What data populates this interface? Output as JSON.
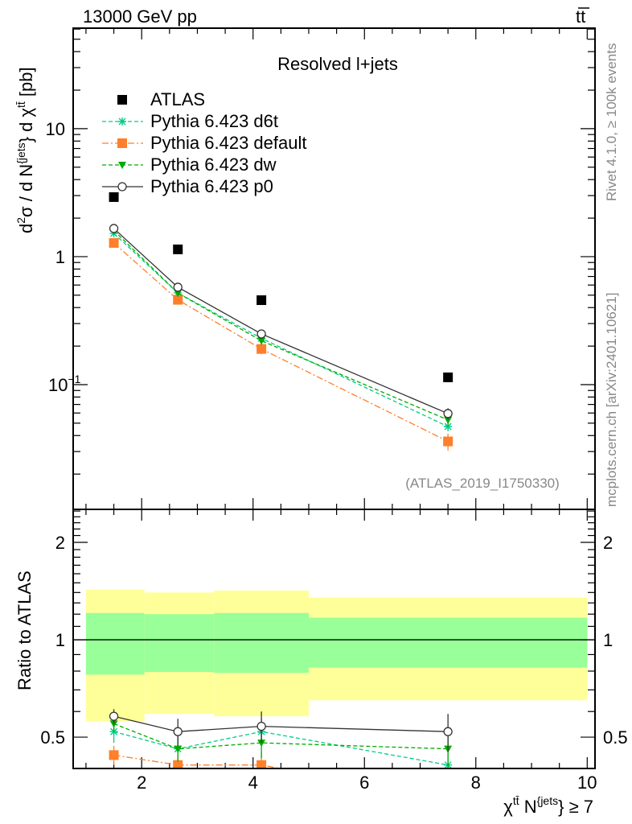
{
  "header": {
    "energy": "13000 GeV pp",
    "process": "tt",
    "process_bar": "̄"
  },
  "side_texts": {
    "rivet": "Rivet 4.1.0, ≥ 100k events",
    "mcplots": "mcplots.cern.ch [arXiv:2401.10621]"
  },
  "watermark": "(ATLAS_2019_I1750330)",
  "chart_data": [
    {
      "type": "line",
      "title": "Resolved l+jets",
      "ylabel": {
        "a": "d",
        "a_sup": "2",
        "b": "σ  /  d N",
        "b_sup": "{jets",
        "c": "} d χ",
        "c_sup": "tt̄",
        "d": " [pb]"
      },
      "yscale": "log",
      "ylim": [
        0.0106,
        61
      ],
      "xlim": [
        0.77,
        10.14
      ],
      "yticks": [
        {
          "v": 10,
          "label": "10"
        },
        {
          "v": 1,
          "label": "1"
        },
        {
          "v": 0.1,
          "label": "10",
          "sup": "−1"
        }
      ],
      "legend_placement": "top-left",
      "x": [
        1.5,
        2.65,
        4.15,
        7.5
      ],
      "series": [
        {
          "name": "ATLAS",
          "color": "#000000",
          "marker": "square",
          "values": [
            2.92,
            1.14,
            0.457,
            0.114
          ]
        },
        {
          "name": "Pythia 6.423 d6t",
          "color": "#00cc88",
          "marker": "asterisk",
          "dash": "5,3",
          "values": [
            1.52,
            0.52,
            0.23,
            0.047
          ],
          "rel_err": [
            0.05,
            0.06,
            0.07,
            0.08
          ]
        },
        {
          "name": "Pythia 6.423 default",
          "color": "#ff7f2a",
          "marker": "square",
          "dash": "8,3,2,3",
          "values": [
            1.28,
            0.46,
            0.19,
            0.036
          ],
          "rel_err": [
            0.05,
            0.07,
            0.09,
            0.15
          ]
        },
        {
          "name": "Pythia 6.423 dw",
          "color": "#00aa00",
          "marker": "triangle-down",
          "dash": "5,3",
          "values": [
            1.6,
            0.52,
            0.22,
            0.053
          ],
          "rel_err": [
            0.05,
            0.06,
            0.07,
            0.1
          ]
        },
        {
          "name": "Pythia 6.423 p0",
          "color": "#333333",
          "marker": "open-circle",
          "values": [
            1.66,
            0.577,
            0.249,
            0.0594
          ],
          "rel_err": [
            0.05,
            0.06,
            0.08,
            0.1
          ]
        }
      ]
    },
    {
      "type": "line",
      "ylabel": "Ratio to ATLAS",
      "xlabel": {
        "a": "χ",
        "a_sup": "tt̄",
        "b": " N",
        "b_sup": "{jets",
        "c": "} ≥ 7"
      },
      "yscale": "log",
      "ylim": [
        0.4,
        2.53
      ],
      "xlim": [
        0.77,
        10.14
      ],
      "xticks": [
        2,
        4,
        6,
        8,
        10
      ],
      "yticks": [
        "0.5",
        "1",
        "2"
      ],
      "bins": [
        [
          1.0,
          2.05
        ],
        [
          2.05,
          3.3
        ],
        [
          3.3,
          5.0
        ],
        [
          5.0,
          10.0
        ]
      ],
      "band_total": {
        "color": "#ffff99",
        "lo": [
          0.56,
          0.59,
          0.58,
          0.65
        ],
        "hi": [
          1.43,
          1.4,
          1.42,
          1.35
        ]
      },
      "band_stat": {
        "color": "#99ff99",
        "lo": [
          0.78,
          0.795,
          0.79,
          0.82
        ],
        "hi": [
          1.21,
          1.2,
          1.21,
          1.17
        ]
      },
      "x": [
        1.5,
        2.65,
        4.15,
        7.5
      ],
      "series": [
        {
          "name": "Pythia 6.423 d6t",
          "color": "#00cc88",
          "marker": "asterisk",
          "dash": "5,3",
          "values": [
            0.52,
            0.46,
            0.52,
            0.41
          ],
          "err": [
            0.04,
            0.04,
            0.05,
            0.05
          ]
        },
        {
          "name": "Pythia 6.423 default",
          "color": "#ff7f2a",
          "marker": "square",
          "dash": "8,3,2,3",
          "values": [
            0.44,
            0.41,
            0.41,
            0.32
          ],
          "err": [
            0.03,
            0.03,
            0.04,
            0.05
          ]
        },
        {
          "name": "Pythia 6.423 dw",
          "color": "#00aa00",
          "marker": "triangle-down",
          "dash": "5,3",
          "values": [
            0.55,
            0.46,
            0.48,
            0.46
          ],
          "err": [
            0.03,
            0.04,
            0.05,
            0.06
          ]
        },
        {
          "name": "Pythia 6.423 p0",
          "color": "#333333",
          "marker": "open-circle",
          "values": [
            0.58,
            0.52,
            0.54,
            0.52
          ],
          "err": [
            0.03,
            0.05,
            0.06,
            0.07
          ]
        }
      ]
    }
  ]
}
